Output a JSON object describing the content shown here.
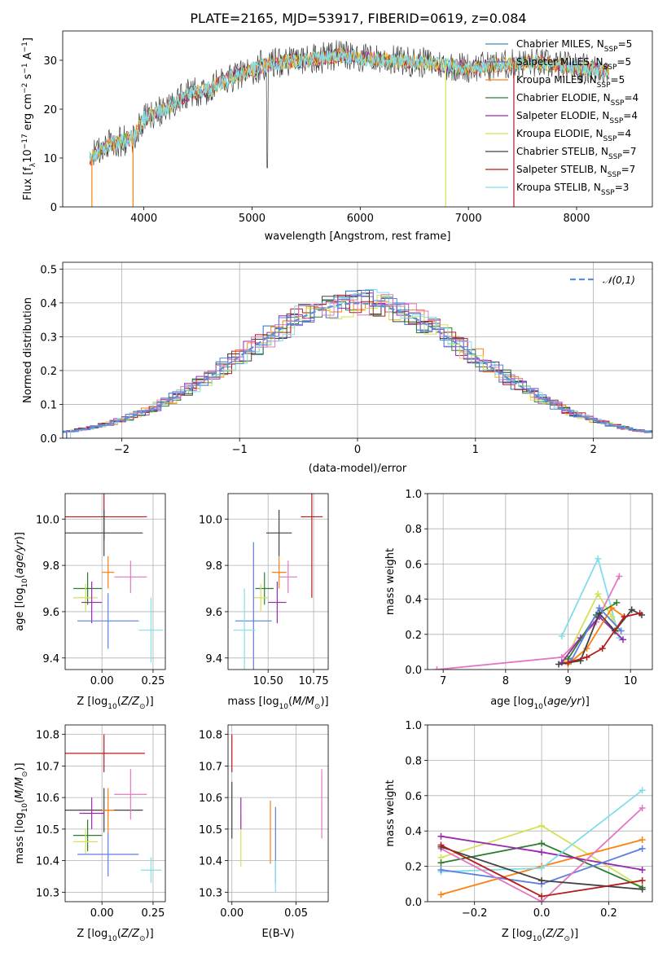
{
  "title": "PLATE=2165, MJD=53917, FIBERID=0619, z=0.084",
  "colors": {
    "Chabrier MILES": "#1f77b4",
    "Salpeter MILES": "#9467bd",
    "Kroupa MILES": "#ff7f0e",
    "Chabrier ELODIE": "#2e7d32",
    "Salpeter ELODIE": "#9c27b0",
    "Kroupa ELODIE": "#d4e157",
    "Chabrier STELIB": "#424242",
    "Salpeter STELIB": "#b71c1c",
    "Kroupa STELIB": "#80deea",
    "extra_blue": "#5c7fe0",
    "extra_pink": "#e377c2",
    "extra_teal": "#7fd3d3",
    "gauss": "#5b8fd6"
  },
  "chart_data": [
    {
      "id": "spectrum",
      "type": "line",
      "xlabel": "wavelength [Angstrom, rest frame]",
      "ylabel": "Flux [f$_\\lambda$10$^{-17}$ erg cm$^{-2}$ s$^{-1}$ A$^{-1}$]",
      "ylabel_parts": {
        "a": "Flux [f",
        "b": "λ",
        "c": "10",
        "d": "−17",
        "e": " erg cm",
        "f": "−2",
        "g": " s",
        "h": "−1",
        "i": " A",
        "j": "−1",
        "k": "]"
      },
      "xlim": [
        3250,
        8700
      ],
      "ylim": [
        0,
        36
      ],
      "xticks": [
        4000,
        5000,
        6000,
        7000,
        8000
      ],
      "yticks": [
        0,
        10,
        20,
        30
      ],
      "legend_position": "top-right",
      "legend": [
        {
          "name": "Chabrier MILES",
          "nssp": "5"
        },
        {
          "name": "Salpeter MILES",
          "nssp": "5"
        },
        {
          "name": "Kroupa MILES",
          "nssp": "5"
        },
        {
          "name": "Chabrier ELODIE",
          "nssp": "4"
        },
        {
          "name": "Salpeter ELODIE",
          "nssp": "4"
        },
        {
          "name": "Kroupa ELODIE",
          "nssp": "4"
        },
        {
          "name": "Chabrier STELIB",
          "nssp": "7"
        },
        {
          "name": "Salpeter STELIB",
          "nssp": "7"
        },
        {
          "name": "Kroupa STELIB",
          "nssp": "3"
        }
      ],
      "continuum": {
        "x": [
          3500,
          3700,
          3900,
          4000,
          4200,
          4400,
          4600,
          4800,
          5000,
          5200,
          5500,
          5800,
          6000,
          6300,
          6600,
          7000,
          7300,
          7600,
          8000,
          8300
        ],
        "y": [
          10,
          13,
          14,
          18,
          20,
          23,
          24,
          26.5,
          28,
          29.5,
          30,
          31,
          30.5,
          30,
          29.5,
          28.5,
          29,
          29.5,
          28.5,
          28
        ]
      },
      "dropouts": [
        {
          "x": 3520,
          "y": 0,
          "series": "Kroupa MILES"
        },
        {
          "x": 3900,
          "y": 0,
          "series": "Kroupa MILES"
        },
        {
          "x": 6790,
          "y": 0,
          "series": "Kroupa ELODIE"
        },
        {
          "x": 7420,
          "y": 0,
          "series": "Salpeter STELIB"
        }
      ]
    },
    {
      "id": "residuals",
      "type": "histogram",
      "xlabel": "(data-model)/error",
      "ylabel": "Normed distribution",
      "xlim": [
        -2.5,
        2.5
      ],
      "ylim": [
        0,
        0.52
      ],
      "xticks": [
        -2,
        -1,
        0,
        1,
        2
      ],
      "xtick_labels": [
        "−2",
        "−1",
        "0",
        "1",
        "2"
      ],
      "yticks": [
        0.0,
        0.1,
        0.2,
        0.3,
        0.4,
        0.5
      ],
      "ytick_labels": [
        "0.0",
        "0.1",
        "0.2",
        "0.3",
        "0.4",
        "0.5"
      ],
      "legend_position": "top-right",
      "gauss_label": "𝒩(0,1)",
      "bin_width": 0.1
    },
    {
      "id": "age_vs_Z",
      "type": "scatter",
      "xlabel": "Z [log$_{10}$(Z/Z$_\\odot$)]",
      "ylabel": "age  [log$_{10}$(age/yr)]",
      "xlim": [
        -0.18,
        0.31
      ],
      "ylim": [
        9.35,
        10.11
      ],
      "xticks": [
        0.0,
        0.25
      ],
      "xtick_labels": [
        "0.00",
        "0.25"
      ],
      "yticks": [
        9.4,
        9.6,
        9.8,
        10.0
      ],
      "ytick_labels": [
        "9.4",
        "9.6",
        "9.8",
        "10.0"
      ],
      "points": [
        {
          "series": "Salpeter STELIB",
          "x": 0.01,
          "y": 10.01,
          "xerr": 0.21,
          "yerr": 0.1
        },
        {
          "series": "Chabrier STELIB",
          "x": 0.01,
          "y": 9.94,
          "xerr": 0.19,
          "yerr": 0.1
        },
        {
          "series": "Chabrier ELODIE",
          "x": -0.07,
          "y": 9.7,
          "xerr": 0.07,
          "yerr": 0.07
        },
        {
          "series": "Kroupa ELODIE",
          "x": -0.08,
          "y": 9.66,
          "xerr": 0.06,
          "yerr": 0.06
        },
        {
          "series": "Salpeter ELODIE",
          "x": -0.05,
          "y": 9.64,
          "xerr": 0.05,
          "yerr": 0.09
        },
        {
          "series": "Kroupa MILES",
          "x": 0.03,
          "y": 9.77,
          "xerr": 0.03,
          "yerr": 0.07
        },
        {
          "series": "extra_pink",
          "x": 0.14,
          "y": 9.75,
          "xerr": 0.08,
          "yerr": 0.07
        },
        {
          "series": "extra_blue",
          "x": 0.03,
          "y": 9.56,
          "xerr": 0.15,
          "yerr": 0.12
        },
        {
          "series": "Kroupa STELIB",
          "x": 0.24,
          "y": 9.52,
          "xerr": 0.06,
          "yerr": 0.14
        }
      ]
    },
    {
      "id": "age_vs_mass",
      "type": "scatter",
      "xlabel": "mass [log$_{10}$(M/M$_\\odot$)]",
      "ylabel": "",
      "xlim": [
        10.28,
        10.83
      ],
      "ylim": [
        9.35,
        10.11
      ],
      "xticks": [
        10.5,
        10.75
      ],
      "xtick_labels": [
        "10.50",
        "10.75"
      ],
      "yticks": [
        9.4,
        9.6,
        9.8,
        10.0
      ],
      "ytick_labels": [
        "9.4",
        "9.6",
        "9.8",
        "10.0"
      ],
      "points": [
        {
          "series": "Salpeter STELIB",
          "x": 10.74,
          "y": 10.01,
          "xerr": 0.06,
          "yerr": 0.35
        },
        {
          "series": "Chabrier STELIB",
          "x": 10.56,
          "y": 9.94,
          "xerr": 0.07,
          "yerr": 0.1
        },
        {
          "series": "Chabrier ELODIE",
          "x": 10.48,
          "y": 9.7,
          "xerr": 0.05,
          "yerr": 0.07
        },
        {
          "series": "Kroupa ELODIE",
          "x": 10.46,
          "y": 9.66,
          "xerr": 0.04,
          "yerr": 0.06
        },
        {
          "series": "Salpeter ELODIE",
          "x": 10.55,
          "y": 9.64,
          "xerr": 0.05,
          "yerr": 0.09
        },
        {
          "series": "Kroupa MILES",
          "x": 10.56,
          "y": 9.77,
          "xerr": 0.04,
          "yerr": 0.07
        },
        {
          "series": "extra_pink",
          "x": 10.61,
          "y": 9.75,
          "xerr": 0.05,
          "yerr": 0.07
        },
        {
          "series": "extra_blue",
          "x": 10.42,
          "y": 9.56,
          "xerr": 0.1,
          "yerr": 0.34
        },
        {
          "series": "Kroupa STELIB",
          "x": 10.37,
          "y": 9.52,
          "xerr": 0.06,
          "yerr": 0.18
        }
      ]
    },
    {
      "id": "weight_vs_age",
      "type": "line",
      "xlabel": "age  [log$_{10}$(age/yr)]",
      "ylabel": "mass weight",
      "xlim": [
        6.75,
        10.35
      ],
      "ylim": [
        0,
        1.0
      ],
      "xticks": [
        7,
        8,
        9,
        10
      ],
      "xtick_labels": [
        "7",
        "8",
        "9",
        "10"
      ],
      "yticks": [
        0.0,
        0.2,
        0.4,
        0.6,
        0.8,
        1.0
      ],
      "ytick_labels": [
        "0.0",
        "0.2",
        "0.4",
        "0.6",
        "0.8",
        "1.0"
      ],
      "series": [
        {
          "name": "Kroupa STELIB",
          "x": [
            8.9,
            9.48,
            9.82
          ],
          "y": [
            0.19,
            0.63,
            0.18
          ]
        },
        {
          "name": "Kroupa ELODIE",
          "x": [
            8.95,
            9.48,
            9.7,
            9.8
          ],
          "y": [
            0.05,
            0.43,
            0.3,
            0.22
          ]
        },
        {
          "name": "extra_pink",
          "x": [
            6.9,
            8.9,
            9.45,
            9.82
          ],
          "y": [
            0.0,
            0.07,
            0.27,
            0.53
          ]
        },
        {
          "name": "Salpeter ELODIE",
          "x": [
            8.9,
            9.2,
            9.5,
            9.88
          ],
          "y": [
            0.04,
            0.18,
            0.3,
            0.17
          ]
        },
        {
          "name": "Chabrier ELODIE",
          "x": [
            9.0,
            9.45,
            9.78
          ],
          "y": [
            0.06,
            0.31,
            0.38
          ]
        },
        {
          "name": "Kroupa MILES",
          "x": [
            9.0,
            9.3,
            9.7,
            9.9
          ],
          "y": [
            0.03,
            0.12,
            0.35,
            0.3
          ]
        },
        {
          "name": "extra_blue",
          "x": [
            9.05,
            9.5,
            9.85
          ],
          "y": [
            0.05,
            0.35,
            0.22
          ]
        },
        {
          "name": "Chabrier STELIB",
          "x": [
            8.85,
            9.2,
            9.5,
            9.75,
            10.02,
            10.18
          ],
          "y": [
            0.03,
            0.05,
            0.32,
            0.22,
            0.34,
            0.31
          ]
        },
        {
          "name": "Salpeter STELIB",
          "x": [
            9.0,
            9.3,
            9.55,
            9.9,
            10.15
          ],
          "y": [
            0.04,
            0.07,
            0.12,
            0.3,
            0.32
          ]
        }
      ]
    },
    {
      "id": "mass_vs_Z",
      "type": "scatter",
      "xlabel": "Z [log$_{10}$(Z/Z$_\\odot$)]",
      "ylabel": "mass [log$_{10}$(M/M$_\\odot$)]",
      "xlim": [
        -0.18,
        0.31
      ],
      "ylim": [
        10.27,
        10.83
      ],
      "xticks": [
        0.0,
        0.25
      ],
      "xtick_labels": [
        "0.00",
        "0.25"
      ],
      "yticks": [
        10.3,
        10.4,
        10.5,
        10.6,
        10.7,
        10.8
      ],
      "ytick_labels": [
        "10.3",
        "10.4",
        "10.5",
        "10.6",
        "10.7",
        "10.8"
      ],
      "points": [
        {
          "series": "Salpeter STELIB",
          "x": 0.01,
          "y": 10.74,
          "xerr": 0.2,
          "yerr": 0.06
        },
        {
          "series": "Chabrier STELIB",
          "x": 0.01,
          "y": 10.56,
          "xerr": 0.19,
          "yerr": 0.07
        },
        {
          "series": "Chabrier ELODIE",
          "x": -0.07,
          "y": 10.48,
          "xerr": 0.07,
          "yerr": 0.05
        },
        {
          "series": "Kroupa ELODIE",
          "x": -0.08,
          "y": 10.46,
          "xerr": 0.06,
          "yerr": 0.04
        },
        {
          "series": "Salpeter ELODIE",
          "x": -0.05,
          "y": 10.55,
          "xerr": 0.06,
          "yerr": 0.05
        },
        {
          "series": "Kroupa MILES",
          "x": 0.03,
          "y": 10.56,
          "xerr": 0.03,
          "yerr": 0.07
        },
        {
          "series": "extra_pink",
          "x": 0.14,
          "y": 10.61,
          "xerr": 0.08,
          "yerr": 0.08
        },
        {
          "series": "extra_blue",
          "x": 0.03,
          "y": 10.42,
          "xerr": 0.15,
          "yerr": 0.07
        },
        {
          "series": "Kroupa STELIB",
          "x": 0.24,
          "y": 10.37,
          "xerr": 0.05,
          "yerr": 0.04
        }
      ]
    },
    {
      "id": "mass_vs_ebv",
      "type": "scatter",
      "xlabel": "E(B-V)",
      "ylabel": "",
      "xlim": [
        -0.003,
        0.075
      ],
      "ylim": [
        10.27,
        10.83
      ],
      "xticks": [
        0.0,
        0.05
      ],
      "xtick_labels": [
        "0.00",
        "0.05"
      ],
      "yticks": [
        10.3,
        10.4,
        10.5,
        10.6,
        10.7,
        10.8
      ],
      "ytick_labels": [
        "10.3",
        "10.4",
        "10.5",
        "10.6",
        "10.7",
        "10.8"
      ],
      "points": [
        {
          "series": "Salpeter STELIB",
          "x": 0.0,
          "y": 10.74,
          "xerr": 0,
          "yerr": 0.06
        },
        {
          "series": "Chabrier STELIB",
          "x": 0.0,
          "y": 10.56,
          "xerr": 0,
          "yerr": 0.09
        },
        {
          "series": "Kroupa ELODIE",
          "x": 0.007,
          "y": 10.46,
          "xerr": 0,
          "yerr": 0.08
        },
        {
          "series": "Salpeter ELODIE",
          "x": 0.007,
          "y": 10.55,
          "xerr": 0,
          "yerr": 0.05
        },
        {
          "series": "Kroupa MILES",
          "x": 0.03,
          "y": 10.49,
          "xerr": 0,
          "yerr": 0.1
        },
        {
          "series": "extra_blue",
          "x": 0.034,
          "y": 10.45,
          "xerr": 0,
          "yerr": 0.12
        },
        {
          "series": "Kroupa STELIB",
          "x": 0.034,
          "y": 10.35,
          "xerr": 0,
          "yerr": 0.05
        },
        {
          "series": "extra_pink",
          "x": 0.07,
          "y": 10.58,
          "xerr": 0,
          "yerr": 0.11
        }
      ]
    },
    {
      "id": "weight_vs_Z",
      "type": "line",
      "xlabel": "Z [log$_{10}$(Z/Z$_\\odot$)]",
      "ylabel": "mass weight",
      "xlim": [
        -0.34,
        0.33
      ],
      "ylim": [
        0,
        1.0
      ],
      "xticks": [
        -0.2,
        0.0,
        0.2
      ],
      "xtick_labels": [
        "−0.2",
        "0.0",
        "0.2"
      ],
      "yticks": [
        0.0,
        0.2,
        0.4,
        0.6,
        0.8,
        1.0
      ],
      "ytick_labels": [
        "0.0",
        "0.2",
        "0.4",
        "0.6",
        "0.8",
        "1.0"
      ],
      "series": [
        {
          "name": "Kroupa ELODIE",
          "x": [
            -0.3,
            0.0,
            0.3
          ],
          "y": [
            0.25,
            0.43,
            0.08
          ]
        },
        {
          "name": "Kroupa MILES",
          "x": [
            -0.3,
            0.0,
            0.3
          ],
          "y": [
            0.04,
            0.2,
            0.35
          ]
        },
        {
          "name": "Chabrier ELODIE",
          "x": [
            -0.3,
            0.0,
            0.3
          ],
          "y": [
            0.22,
            0.33,
            0.08
          ]
        },
        {
          "name": "Salpeter ELODIE",
          "x": [
            -0.3,
            0.0,
            0.3
          ],
          "y": [
            0.37,
            0.28,
            0.18
          ]
        },
        {
          "name": "Kroupa STELIB",
          "x": [
            -0.3,
            0.0,
            0.3
          ],
          "y": [
            0.17,
            0.19,
            0.63
          ]
        },
        {
          "name": "extra_blue",
          "x": [
            -0.3,
            0.0,
            0.3
          ],
          "y": [
            0.18,
            0.1,
            0.3
          ]
        },
        {
          "name": "extra_pink",
          "x": [
            -0.3,
            0.0,
            0.3
          ],
          "y": [
            0.3,
            0.0,
            0.53
          ]
        },
        {
          "name": "Chabrier STELIB",
          "x": [
            -0.3,
            0.0,
            0.3
          ],
          "y": [
            0.31,
            0.12,
            0.07
          ]
        },
        {
          "name": "Salpeter STELIB",
          "x": [
            -0.3,
            0.0,
            0.3
          ],
          "y": [
            0.32,
            0.03,
            0.12
          ]
        }
      ]
    }
  ]
}
